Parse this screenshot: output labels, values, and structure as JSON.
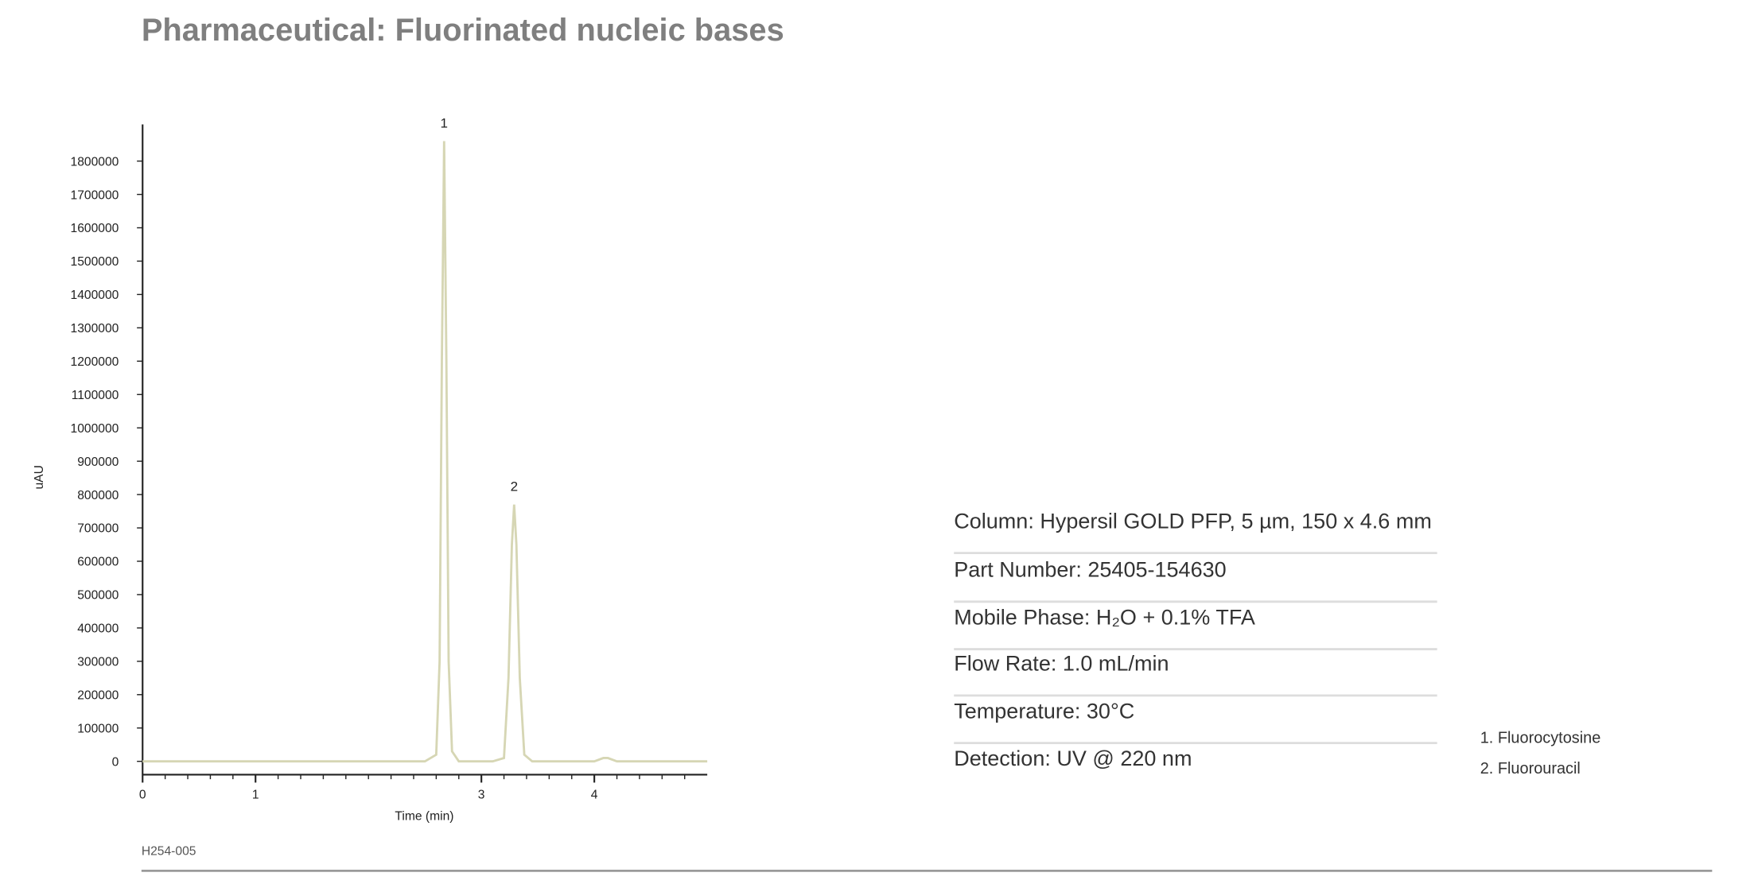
{
  "chart_data": {
    "type": "line",
    "title": "Pharmaceutical: Fluorinated nucleic bases",
    "x_label": "Time (min)",
    "y_label": "uAU",
    "x": [
      0,
      2.5,
      2.6,
      2.63,
      2.65,
      2.67,
      2.69,
      2.71,
      2.74,
      2.8,
      3.1,
      3.2,
      3.24,
      3.27,
      3.29,
      3.31,
      3.34,
      3.38,
      3.45,
      4.0,
      4.08,
      4.12,
      4.2,
      5.0
    ],
    "series": [
      {
        "color": "#d6d6b4",
        "values": [
          0,
          0,
          20000,
          300000,
          1200000,
          1860000,
          1200000,
          300000,
          30000,
          0,
          0,
          10000,
          250000,
          650000,
          770000,
          650000,
          250000,
          20000,
          0,
          0,
          10000,
          10000,
          0,
          0
        ]
      }
    ],
    "annotations": [
      {
        "text": "1",
        "x": 2.67,
        "y": 1860000
      },
      {
        "text": "2",
        "x": 3.29,
        "y": 770000
      }
    ],
    "xlim": [
      0,
      5
    ],
    "xticks": [
      0,
      1,
      3,
      4
    ],
    "xminorticks": [
      0.2,
      0.4,
      0.6,
      0.8,
      1.2,
      1.4,
      1.6,
      1.8,
      2,
      2.2,
      2.4,
      2.6,
      2.8,
      3.2,
      3.4,
      3.6,
      3.8,
      4.2,
      4.4,
      4.6,
      4.8
    ],
    "ylim": [
      -40000,
      1910000
    ],
    "yticks": [
      0,
      100000,
      200000,
      300000,
      400000,
      500000,
      600000,
      700000,
      800000,
      900000,
      1000000,
      1100000,
      1200000,
      1300000,
      1400000,
      1500000,
      1600000,
      1700000,
      1800000
    ],
    "grid": false
  },
  "conditions": [
    "Column: Hypersil GOLD PFP, 5 µm, 150 x 4.6 mm",
    "Part Number: 25405-154630",
    "Mobile Phase:  H₂O + 0.1% TFA",
    "Flow Rate: 1.0 mL/min",
    "Temperature: 30°C",
    "Detection: UV @ 220 nm"
  ],
  "peak_legend": [
    "1. Fluorocytosine",
    "2. Fluorouracil"
  ],
  "figure_code": "H254-005"
}
